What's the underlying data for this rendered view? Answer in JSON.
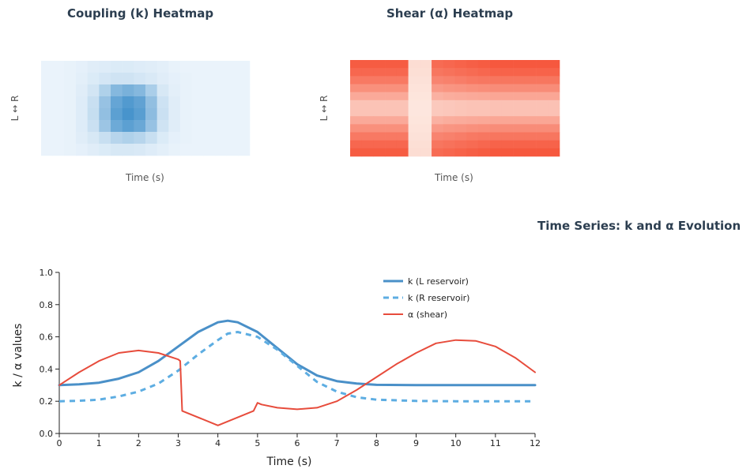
{
  "heatmaps": [
    {
      "title": "Coupling (k) Heatmap",
      "xlabel": "Time (s)",
      "ylabel": "L ↔ R",
      "colormap": "blues",
      "rows": 8,
      "cols": 18,
      "values": [
        [
          0.04,
          0.04,
          0.05,
          0.06,
          0.08,
          0.09,
          0.1,
          0.1,
          0.09,
          0.08,
          0.07,
          0.05,
          0.04,
          0.04,
          0.04,
          0.04,
          0.04,
          0.04
        ],
        [
          0.04,
          0.04,
          0.05,
          0.07,
          0.1,
          0.13,
          0.15,
          0.15,
          0.13,
          0.11,
          0.08,
          0.06,
          0.05,
          0.04,
          0.04,
          0.04,
          0.04,
          0.04
        ],
        [
          0.04,
          0.04,
          0.05,
          0.08,
          0.14,
          0.28,
          0.45,
          0.5,
          0.45,
          0.3,
          0.12,
          0.07,
          0.05,
          0.04,
          0.04,
          0.04,
          0.04,
          0.04
        ],
        [
          0.04,
          0.04,
          0.05,
          0.09,
          0.18,
          0.38,
          0.58,
          0.66,
          0.6,
          0.4,
          0.16,
          0.08,
          0.05,
          0.04,
          0.04,
          0.04,
          0.04,
          0.04
        ],
        [
          0.04,
          0.04,
          0.05,
          0.09,
          0.19,
          0.4,
          0.62,
          0.7,
          0.63,
          0.42,
          0.17,
          0.08,
          0.05,
          0.04,
          0.04,
          0.04,
          0.04,
          0.04
        ],
        [
          0.04,
          0.04,
          0.05,
          0.09,
          0.17,
          0.36,
          0.55,
          0.62,
          0.56,
          0.38,
          0.15,
          0.08,
          0.05,
          0.04,
          0.04,
          0.04,
          0.04,
          0.04
        ],
        [
          0.04,
          0.04,
          0.05,
          0.08,
          0.12,
          0.18,
          0.25,
          0.28,
          0.25,
          0.18,
          0.1,
          0.06,
          0.05,
          0.04,
          0.04,
          0.04,
          0.04,
          0.04
        ],
        [
          0.04,
          0.04,
          0.05,
          0.06,
          0.08,
          0.1,
          0.12,
          0.12,
          0.11,
          0.09,
          0.07,
          0.05,
          0.04,
          0.04,
          0.04,
          0.04,
          0.04,
          0.04
        ]
      ]
    },
    {
      "title": "Shear (α) Heatmap",
      "xlabel": "Time (s)",
      "ylabel": "L ↔ R",
      "colormap": "reds",
      "rows": 12,
      "cols": 18,
      "values": [
        [
          0.78,
          0.78,
          0.78,
          0.78,
          0.78,
          0.08,
          0.08,
          0.7,
          0.72,
          0.74,
          0.76,
          0.78,
          0.8,
          0.8,
          0.8,
          0.8,
          0.8,
          0.8
        ],
        [
          0.72,
          0.72,
          0.72,
          0.72,
          0.72,
          0.07,
          0.07,
          0.64,
          0.66,
          0.68,
          0.7,
          0.72,
          0.74,
          0.74,
          0.74,
          0.74,
          0.74,
          0.74
        ],
        [
          0.62,
          0.62,
          0.62,
          0.62,
          0.62,
          0.06,
          0.06,
          0.56,
          0.58,
          0.6,
          0.62,
          0.63,
          0.64,
          0.64,
          0.64,
          0.64,
          0.64,
          0.64
        ],
        [
          0.5,
          0.5,
          0.5,
          0.5,
          0.5,
          0.05,
          0.05,
          0.45,
          0.47,
          0.48,
          0.5,
          0.51,
          0.52,
          0.52,
          0.52,
          0.52,
          0.52,
          0.52
        ],
        [
          0.36,
          0.36,
          0.36,
          0.36,
          0.36,
          0.04,
          0.04,
          0.32,
          0.34,
          0.35,
          0.36,
          0.37,
          0.38,
          0.38,
          0.38,
          0.38,
          0.38,
          0.38
        ],
        [
          0.22,
          0.22,
          0.22,
          0.22,
          0.22,
          0.03,
          0.03,
          0.19,
          0.2,
          0.21,
          0.22,
          0.22,
          0.23,
          0.23,
          0.23,
          0.23,
          0.23,
          0.23
        ],
        [
          0.22,
          0.22,
          0.22,
          0.22,
          0.22,
          0.03,
          0.03,
          0.19,
          0.2,
          0.21,
          0.22,
          0.22,
          0.23,
          0.23,
          0.23,
          0.23,
          0.23,
          0.23
        ],
        [
          0.36,
          0.36,
          0.36,
          0.36,
          0.36,
          0.04,
          0.04,
          0.32,
          0.34,
          0.35,
          0.36,
          0.37,
          0.38,
          0.38,
          0.38,
          0.38,
          0.38,
          0.38
        ],
        [
          0.5,
          0.5,
          0.5,
          0.5,
          0.5,
          0.05,
          0.05,
          0.45,
          0.47,
          0.48,
          0.5,
          0.51,
          0.52,
          0.52,
          0.52,
          0.52,
          0.52,
          0.52
        ],
        [
          0.62,
          0.62,
          0.62,
          0.62,
          0.62,
          0.06,
          0.06,
          0.56,
          0.58,
          0.6,
          0.62,
          0.63,
          0.64,
          0.64,
          0.64,
          0.64,
          0.64,
          0.64
        ],
        [
          0.72,
          0.72,
          0.72,
          0.72,
          0.72,
          0.07,
          0.07,
          0.64,
          0.66,
          0.68,
          0.7,
          0.72,
          0.74,
          0.74,
          0.74,
          0.74,
          0.74,
          0.74
        ],
        [
          0.78,
          0.78,
          0.78,
          0.78,
          0.78,
          0.08,
          0.08,
          0.7,
          0.72,
          0.74,
          0.76,
          0.78,
          0.8,
          0.8,
          0.8,
          0.8,
          0.8,
          0.8
        ]
      ]
    }
  ],
  "chart_data": {
    "type": "line",
    "title": "Time Series: k and α Evolution",
    "xlabel": "Time (s)",
    "ylabel": "k / α values",
    "xlim": [
      0,
      12
    ],
    "ylim": [
      0,
      1.0
    ],
    "xticks": [
      0,
      1,
      2,
      3,
      4,
      5,
      6,
      7,
      8,
      9,
      10,
      11,
      12
    ],
    "yticks": [
      0.0,
      0.2,
      0.4,
      0.6,
      0.8,
      1.0
    ],
    "xtick_labels": [
      "0",
      "1",
      "2",
      "3",
      "4",
      "5",
      "6",
      "7",
      "8",
      "9",
      "10",
      "11",
      "12"
    ],
    "ytick_labels": [
      "0.0",
      "0.2",
      "0.4",
      "0.6",
      "0.8",
      "1.0"
    ],
    "grid": false,
    "legend_position": "top-right",
    "series": [
      {
        "name": "k (L reservoir)",
        "color": "#4a90c8",
        "style": "solid",
        "x": [
          0,
          0.5,
          1,
          1.5,
          2,
          2.5,
          3,
          3.5,
          4,
          4.25,
          4.5,
          5,
          5.5,
          6,
          6.5,
          7,
          7.5,
          8,
          9,
          10,
          11,
          12
        ],
        "y": [
          0.3,
          0.305,
          0.315,
          0.34,
          0.38,
          0.45,
          0.54,
          0.63,
          0.69,
          0.7,
          0.69,
          0.63,
          0.53,
          0.43,
          0.36,
          0.325,
          0.31,
          0.302,
          0.3,
          0.3,
          0.3,
          0.3
        ]
      },
      {
        "name": "k (R reservoir)",
        "color": "#5dade2",
        "style": "dashed",
        "x": [
          0,
          0.5,
          1,
          1.5,
          2,
          2.5,
          3,
          3.5,
          4,
          4.25,
          4.5,
          5,
          5.5,
          6,
          6.5,
          7,
          7.5,
          8,
          9,
          10,
          11,
          12
        ],
        "y": [
          0.2,
          0.203,
          0.21,
          0.23,
          0.26,
          0.31,
          0.39,
          0.49,
          0.58,
          0.62,
          0.63,
          0.6,
          0.52,
          0.42,
          0.32,
          0.26,
          0.225,
          0.21,
          0.202,
          0.2,
          0.2,
          0.2
        ]
      },
      {
        "name": "α (shear)",
        "color": "#e74c3c",
        "style": "solid",
        "x": [
          0,
          0.5,
          1,
          1.5,
          2,
          2.5,
          3,
          3.05,
          3.1,
          4,
          4.9,
          5,
          5.1,
          5.5,
          6,
          6.5,
          7,
          7.5,
          8,
          8.5,
          9,
          9.5,
          10,
          10.5,
          11,
          11.5,
          12
        ],
        "y": [
          0.3,
          0.38,
          0.45,
          0.5,
          0.515,
          0.5,
          0.46,
          0.45,
          0.14,
          0.05,
          0.14,
          0.19,
          0.18,
          0.16,
          0.15,
          0.16,
          0.2,
          0.27,
          0.35,
          0.43,
          0.5,
          0.56,
          0.58,
          0.575,
          0.54,
          0.47,
          0.38
        ]
      }
    ]
  }
}
